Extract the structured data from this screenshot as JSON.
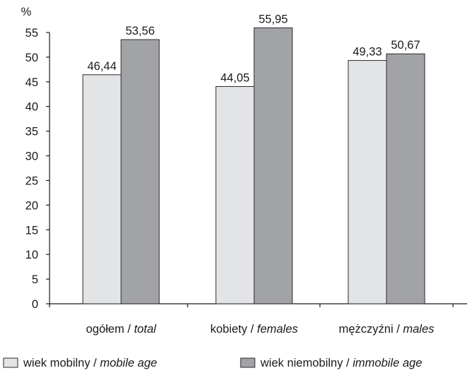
{
  "chart_data": {
    "type": "bar",
    "ylabel": "%",
    "ylim": [
      0,
      55
    ],
    "ytick_step": 5,
    "categories": [
      {
        "main": "ogółem / ",
        "italic": "total"
      },
      {
        "main": "kobiety / ",
        "italic": "females"
      },
      {
        "main": "mężczyźni / ",
        "italic": "males"
      }
    ],
    "series": [
      {
        "name_main": "wiek mobilny / ",
        "name_italic": "mobile age",
        "color": "#e3e4e6",
        "values": [
          46.44,
          44.05,
          49.33
        ],
        "labels": [
          "46,44",
          "44,05",
          "49,33"
        ]
      },
      {
        "name_main": "wiek niemobilny / ",
        "name_italic": "immobile age",
        "color": "#a2a3a7",
        "values": [
          53.56,
          55.95,
          50.67
        ],
        "labels": [
          "53,56",
          "55,95",
          "50,67"
        ]
      }
    ],
    "grid": false,
    "legend_position": "bottom"
  }
}
